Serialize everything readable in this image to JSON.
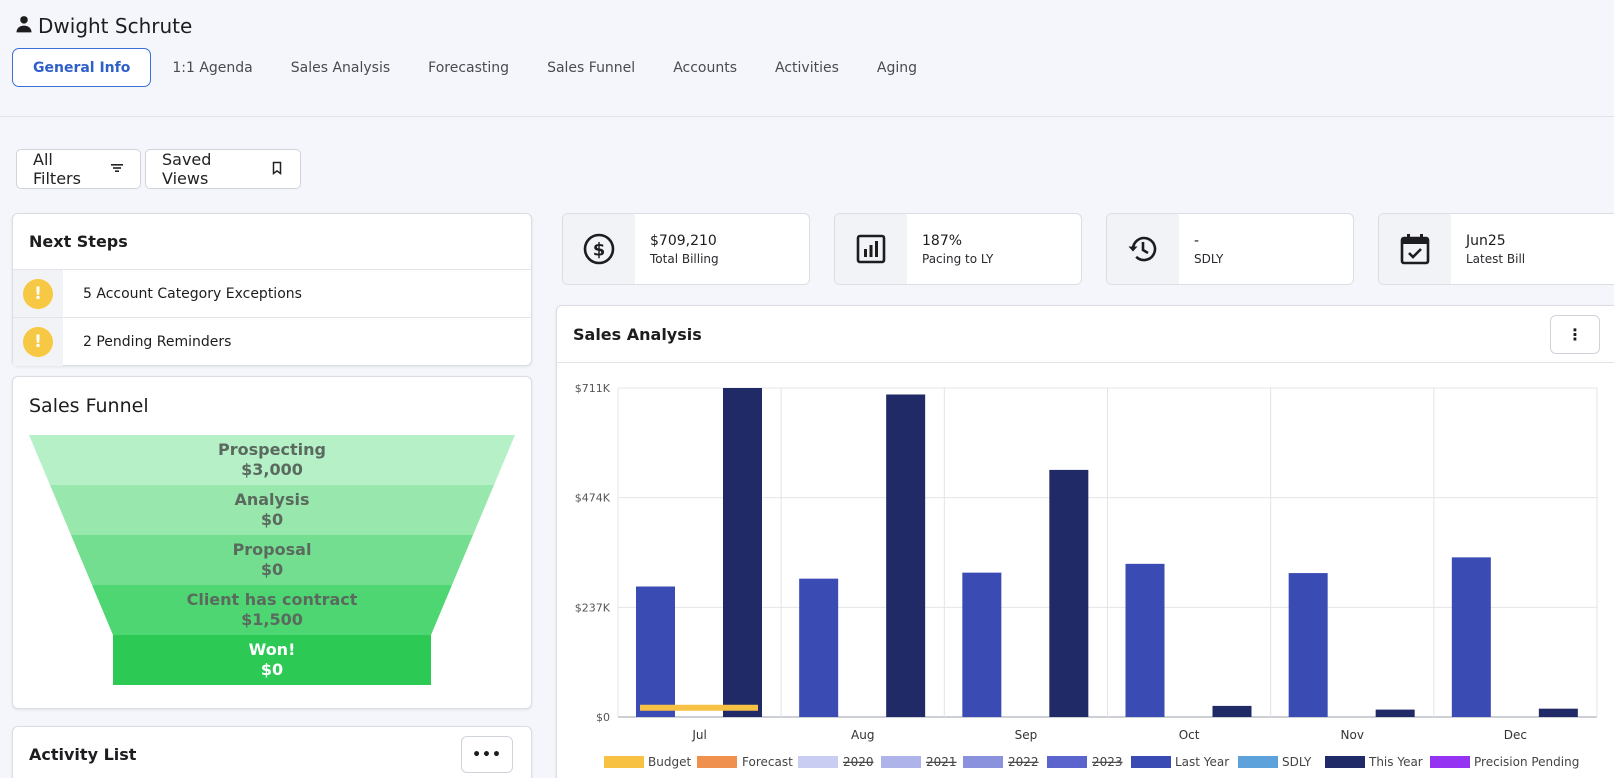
{
  "user": {
    "name": "Dwight Schrute",
    "icon": "person-icon"
  },
  "tabs": [
    {
      "label": "General Info",
      "active": true
    },
    {
      "label": "1:1 Agenda"
    },
    {
      "label": "Sales Analysis"
    },
    {
      "label": "Forecasting"
    },
    {
      "label": "Sales Funnel"
    },
    {
      "label": "Accounts"
    },
    {
      "label": "Activities"
    },
    {
      "label": "Aging"
    }
  ],
  "filters": {
    "all_filters": "All Filters",
    "saved_views": "Saved Views"
  },
  "next_steps": {
    "title": "Next Steps",
    "items": [
      {
        "icon": "!",
        "text": "5 Account Category Exceptions"
      },
      {
        "icon": "!",
        "text": "2 Pending Reminders"
      }
    ]
  },
  "sales_funnel": {
    "title": "Sales Funnel",
    "stages": [
      {
        "name": "Prospecting",
        "value": "$3,000",
        "color": "#b5f0c6"
      },
      {
        "name": "Analysis",
        "value": "$0",
        "color": "#98e8ad"
      },
      {
        "name": "Proposal",
        "value": "$0",
        "color": "#73de8f"
      },
      {
        "name": "Client has contract",
        "value": "$1,500",
        "color": "#4dd672"
      },
      {
        "name": "Won!",
        "value": "$0",
        "color": "#2cc955"
      }
    ]
  },
  "activity_list": {
    "title": "Activity List",
    "menu_label": "•••"
  },
  "kpis": [
    {
      "value": "$709,210",
      "label": "Total Billing",
      "icon": "dollar-icon"
    },
    {
      "value": "187%",
      "label": "Pacing to LY",
      "icon": "bar-chart-icon"
    },
    {
      "value": "-",
      "label": "SDLY",
      "icon": "history-icon"
    },
    {
      "value": "Jun25",
      "label": "Latest Bill",
      "icon": "calendar-check-icon"
    }
  ],
  "sales_analysis": {
    "title": "Sales Analysis",
    "menu_label": "⋮"
  },
  "chart_data": {
    "type": "bar",
    "title": "Sales Analysis",
    "categories": [
      "Jul",
      "Aug",
      "Sep",
      "Oct",
      "Nov",
      "Dec"
    ],
    "y_ticks": [
      "$0",
      "$237K",
      "$474K",
      "$711K"
    ],
    "ylim": [
      0,
      711000
    ],
    "grid": true,
    "legend_position": "bottom",
    "series": [
      {
        "name": "Budget",
        "color": "#f7c143",
        "values": [
          20000,
          null,
          null,
          null,
          null,
          null
        ]
      },
      {
        "name": "Forecast",
        "color": "#f0904f",
        "values": [
          null,
          null,
          null,
          null,
          null,
          null
        ]
      },
      {
        "name": "2020",
        "color": "#c9cdf2",
        "strike": true,
        "values": [
          null,
          null,
          null,
          null,
          null,
          null
        ]
      },
      {
        "name": "2021",
        "color": "#aeb4ea",
        "strike": true,
        "values": [
          null,
          null,
          null,
          null,
          null,
          null
        ]
      },
      {
        "name": "2022",
        "color": "#8a92de",
        "strike": true,
        "values": [
          null,
          null,
          null,
          null,
          null,
          null
        ]
      },
      {
        "name": "2023",
        "color": "#5a64cc",
        "strike": true,
        "values": [
          null,
          null,
          null,
          null,
          null,
          null
        ]
      },
      {
        "name": "Last Year",
        "color": "#3a4bb3",
        "values": [
          282000,
          299000,
          312000,
          331000,
          311000,
          345000
        ]
      },
      {
        "name": "SDLY",
        "color": "#5da2db",
        "values": [
          null,
          null,
          null,
          null,
          null,
          null
        ]
      },
      {
        "name": "This Year",
        "color": "#202a66",
        "values": [
          711000,
          697000,
          534000,
          24000,
          16000,
          18000
        ]
      },
      {
        "name": "Precision Pending",
        "color": "#9433f2",
        "values": [
          null,
          null,
          null,
          null,
          null,
          null
        ]
      }
    ]
  }
}
